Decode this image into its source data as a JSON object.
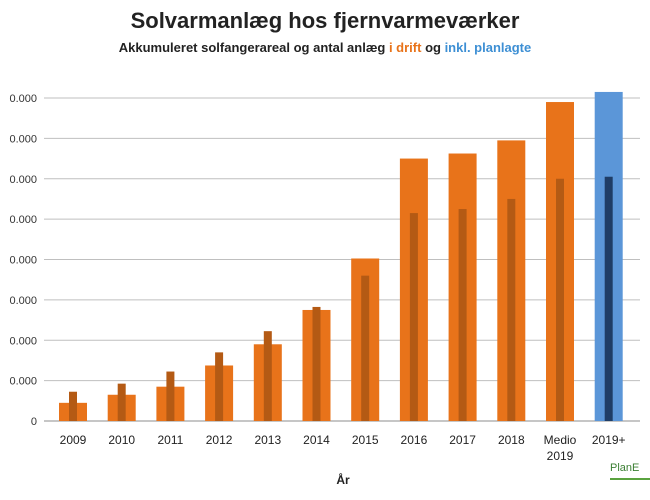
{
  "title": "Solvarmanlæg hos fjernvarmeværker",
  "subtitle": {
    "prefix": "Akkumuleret solfangerareal og antal anlæg ",
    "in_operation": "i drift",
    "middle": " og ",
    "incl_planned": "inkl. planlagte"
  },
  "logo_text": "PlanE",
  "colors": {
    "orange_bar": "#e8731a",
    "orange_inner": "#b45a14",
    "blue_bar": "#5b96d8",
    "blue_inner": "#1f3d66",
    "grid": "#bfbfbf",
    "subtitle_orange": "#e8731a",
    "subtitle_blue": "#3d8fd4"
  },
  "chart_data": {
    "type": "bar",
    "title": "Solvarmanlæg hos fjernvarmeværker",
    "xlabel": "År",
    "ylabel": "",
    "categories": [
      "2009",
      "2010",
      "2011",
      "2012",
      "2013",
      "2014",
      "2015",
      "2016",
      "2017",
      "2018",
      "Medio 2019",
      "2019+"
    ],
    "y_ticks": [
      {
        "value": 0,
        "label": "0"
      },
      {
        "value": 200000,
        "label": "0.000"
      },
      {
        "value": 400000,
        "label": "0.000"
      },
      {
        "value": 600000,
        "label": "0.000"
      },
      {
        "value": 800000,
        "label": "0.000"
      },
      {
        "value": 1000000,
        "label": "0.000"
      },
      {
        "value": 1200000,
        "label": "0.000"
      },
      {
        "value": 1400000,
        "label": "0.000"
      },
      {
        "value": 1600000,
        "label": "0.000"
      }
    ],
    "ylim": [
      0,
      1600000
    ],
    "grid": true,
    "series": [
      {
        "values": [
          90000,
          130000,
          170000,
          275000,
          380000,
          550000,
          805000,
          1300000,
          1325000,
          1390000,
          1580000,
          1630000
        ],
        "colors": [
          "#e8731a",
          "#e8731a",
          "#e8731a",
          "#e8731a",
          "#e8731a",
          "#e8731a",
          "#e8731a",
          "#e8731a",
          "#e8731a",
          "#e8731a",
          "#e8731a",
          "#5b96d8"
        ]
      },
      {
        "values": [
          145000,
          185000,
          245000,
          340000,
          445000,
          565000,
          720000,
          1030000,
          1050000,
          1100000,
          1200000,
          1210000
        ],
        "colors": [
          "#b45a14",
          "#b45a14",
          "#b45a14",
          "#b45a14",
          "#b45a14",
          "#b45a14",
          "#b45a14",
          "#b45a14",
          "#b45a14",
          "#b45a14",
          "#b45a14",
          "#1f3d66"
        ]
      }
    ]
  }
}
